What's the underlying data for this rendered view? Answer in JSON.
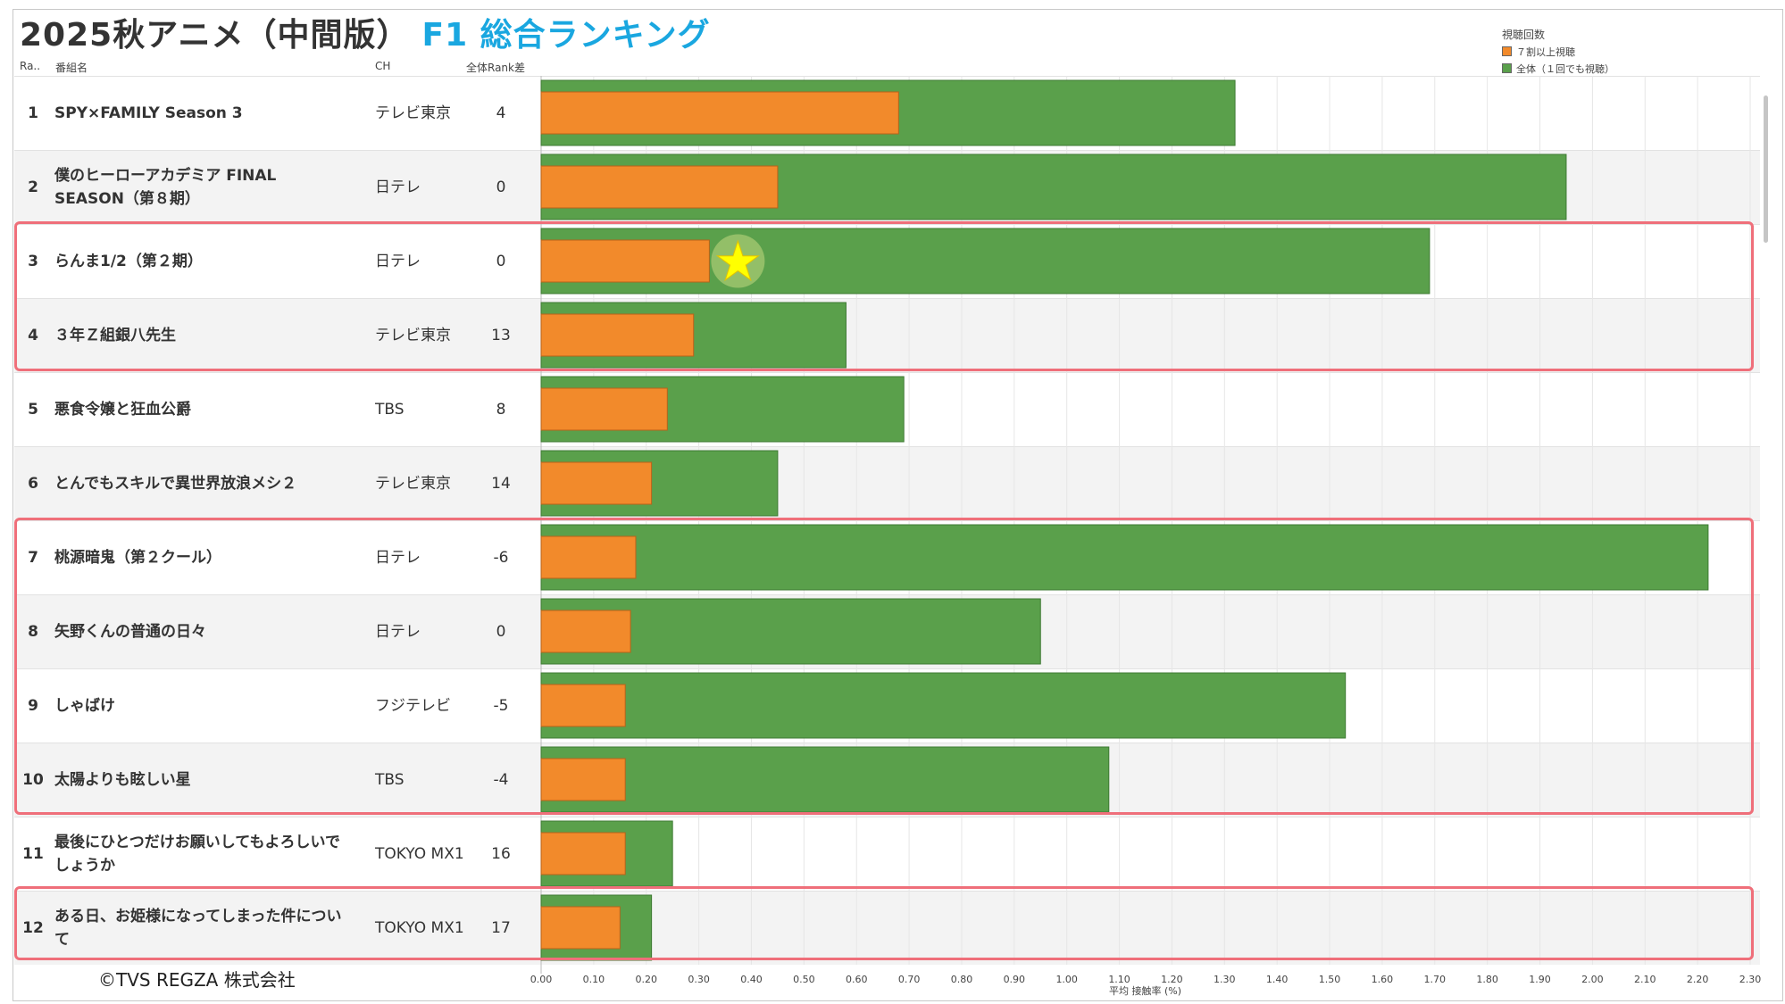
{
  "title": {
    "main": "2025秋アニメ（中間版）",
    "sub": "F1 総合ランキング"
  },
  "columns": {
    "rank": "Ra..",
    "name": "番組名",
    "ch": "CH",
    "diff": "全体Rank差"
  },
  "legend": {
    "title": "視聴回数",
    "items": [
      {
        "label": "７割以上視聴",
        "color": "#f28a2b"
      },
      {
        "label": "全体（１回でも視聴）",
        "color": "#5aa04b"
      }
    ]
  },
  "copyright": "©TVS REGZA 株式会社",
  "chart_data": {
    "type": "bar",
    "title": "2025秋アニメ（中間版） F1 総合ランキング",
    "xlabel": "平均 接触率 (%)",
    "xlim": [
      0,
      2.3
    ],
    "xticks": [
      "0.00",
      "0.10",
      "0.20",
      "0.30",
      "0.40",
      "0.50",
      "0.60",
      "0.70",
      "0.80",
      "0.90",
      "1.00",
      "1.10",
      "1.20",
      "1.30",
      "1.40",
      "1.50",
      "1.60",
      "1.70",
      "1.80",
      "1.90",
      "2.00",
      "2.10",
      "2.20",
      "2.30"
    ],
    "categories": [
      "SPY×FAMILY Season 3",
      "僕のヒーローアカデミア FINAL SEASON（第８期）",
      "らんま1/2（第２期）",
      "３年Ｚ組銀八先生",
      "悪食令嬢と狂血公爵",
      "とんでもスキルで異世界放浪メシ２",
      "桃源暗鬼（第２クール）",
      "矢野くんの普通の日々",
      "しゃばけ",
      "太陽よりも眩しい星",
      "最後にひとつだけお願いしてもよろしいでしょうか",
      "ある日、お姫様になってしまった件について"
    ],
    "series": [
      {
        "name": "全体（１回でも視聴）",
        "values": [
          1.32,
          1.95,
          1.69,
          0.58,
          0.69,
          0.45,
          2.22,
          0.95,
          1.53,
          1.08,
          0.25,
          0.21
        ]
      },
      {
        "name": "７割以上視聴",
        "values": [
          0.68,
          0.45,
          0.32,
          0.29,
          0.24,
          0.21,
          0.18,
          0.17,
          0.16,
          0.16,
          0.16,
          0.15
        ]
      }
    ]
  },
  "rows": [
    {
      "rank": "1",
      "name": "SPY×FAMILY Season 3",
      "ch": "テレビ東京",
      "diff": "4"
    },
    {
      "rank": "2",
      "name": "僕のヒーローアカデミア FINAL SEASON（第８期）",
      "ch": "日テレ",
      "diff": "0"
    },
    {
      "rank": "3",
      "name": "らんま1/2（第２期）",
      "ch": "日テレ",
      "diff": "0"
    },
    {
      "rank": "4",
      "name": "３年Ｚ組銀八先生",
      "ch": "テレビ東京",
      "diff": "13"
    },
    {
      "rank": "5",
      "name": "悪食令嬢と狂血公爵",
      "ch": "TBS",
      "diff": "8"
    },
    {
      "rank": "6",
      "name": "とんでもスキルで異世界放浪メシ２",
      "ch": "テレビ東京",
      "diff": "14"
    },
    {
      "rank": "7",
      "name": "桃源暗鬼（第２クール）",
      "ch": "日テレ",
      "diff": "-6"
    },
    {
      "rank": "8",
      "name": "矢野くんの普通の日々",
      "ch": "日テレ",
      "diff": "0"
    },
    {
      "rank": "9",
      "name": "しゃばけ",
      "ch": "フジテレビ",
      "diff": "-5"
    },
    {
      "rank": "10",
      "name": "太陽よりも眩しい星",
      "ch": "TBS",
      "diff": "-4"
    },
    {
      "rank": "11",
      "name": "最後にひとつだけお願いしてもよろしいでしょうか",
      "ch": "TOKYO MX1",
      "diff": "16"
    },
    {
      "rank": "12",
      "name": "ある日、お姫様になってしまった件について",
      "ch": "TOKYO MX1",
      "diff": "17"
    }
  ],
  "marker": {
    "row": 3,
    "symbol": "★",
    "color": "#ffff00"
  }
}
